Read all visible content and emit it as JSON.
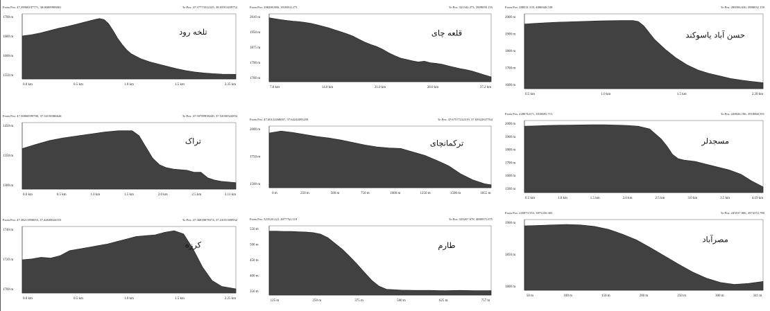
{
  "chart_data": [
    {
      "type": "area",
      "title": "تلخه رود",
      "header_left": "From Pos: 47.39968197771, 38.06809909001",
      "header_right": "To Pos: 47.37773312225, 38.05913209752",
      "yticks": [
        "1790 m",
        "1680 m",
        "1600 m",
        "1550 m"
      ],
      "xticks": [
        "0.0 km",
        "0.5 km",
        "1.0 km",
        "1.5 km",
        "2.35 km"
      ],
      "x": [
        0,
        0.1,
        0.2,
        0.3,
        0.4,
        0.5,
        0.6,
        0.7,
        0.8,
        0.85,
        0.9,
        0.95,
        1.0,
        1.05,
        1.1,
        1.15,
        1.2,
        1.3,
        1.4,
        1.5,
        1.6,
        1.7,
        1.8,
        1.9,
        2.0,
        2.1,
        2.2,
        2.35
      ],
      "y": [
        1715,
        1720,
        1728,
        1738,
        1748,
        1756,
        1766,
        1776,
        1786,
        1790,
        1786,
        1768,
        1738,
        1705,
        1678,
        1655,
        1638,
        1618,
        1604,
        1594,
        1584,
        1574,
        1566,
        1560,
        1556,
        1553,
        1551,
        1550
      ],
      "xlim": [
        0,
        2.35
      ],
      "ylim": [
        1530,
        1810
      ]
    },
    {
      "type": "area",
      "title": "قلعه چای",
      "header_left": "From Pos: 298280.986, 3918814.273",
      "header_right": "To Pos: 321342.273, 3909059.135",
      "yticks": [
        "2010 m",
        "1950 m",
        "1875 m",
        "1790 m",
        "1700 m"
      ],
      "xticks": [
        "7.0 km",
        "14.0 km",
        "21.0 km",
        "28.0 km",
        "37.2 km"
      ],
      "x": [
        0,
        1,
        2,
        3,
        4,
        5,
        6,
        7,
        8,
        9,
        10,
        11,
        12,
        13,
        14,
        15,
        16,
        17,
        18,
        19,
        20,
        21,
        22,
        23,
        24,
        25,
        26,
        27,
        28,
        29,
        30,
        31,
        32,
        33,
        34,
        35,
        36,
        37.2
      ],
      "y": [
        2010,
        2005,
        2000,
        1996,
        1992,
        1990,
        1986,
        1981,
        1974,
        1966,
        1958,
        1948,
        1938,
        1928,
        1916,
        1900,
        1885,
        1872,
        1862,
        1848,
        1830,
        1815,
        1802,
        1795,
        1788,
        1782,
        1786,
        1778,
        1775,
        1770,
        1762,
        1755,
        1748,
        1742,
        1735,
        1726,
        1716,
        1705
      ],
      "xlim": [
        0,
        37.2
      ],
      "ylim": [
        1680,
        2030
      ]
    },
    {
      "type": "area",
      "title": "حسن آباد یاسوکند",
      "header_left": "From Pos: 288531.535, 4006948.538",
      "header_right": "To Pos: 288394.630, 3988032.150",
      "yticks": [
        "2000 m",
        "1900 m",
        "1800 m",
        "1700 m",
        "1600 m"
      ],
      "xticks": [
        "0.5 km",
        "1.0 km",
        "1.5 km",
        "2.20 km"
      ],
      "x": [
        0,
        0.1,
        0.2,
        0.3,
        0.4,
        0.5,
        0.6,
        0.7,
        0.8,
        0.9,
        1.0,
        1.05,
        1.1,
        1.15,
        1.2,
        1.3,
        1.4,
        1.5,
        1.6,
        1.7,
        1.8,
        1.9,
        2.0,
        2.1,
        2.2
      ],
      "y": [
        1960,
        1964,
        1968,
        1971,
        1973,
        1975,
        1977,
        1979,
        1980,
        1981,
        1981,
        1975,
        1950,
        1910,
        1870,
        1810,
        1760,
        1720,
        1690,
        1670,
        1655,
        1640,
        1630,
        1622,
        1615
      ],
      "xlim": [
        0,
        2.2
      ],
      "ylim": [
        1580,
        2020
      ]
    },
    {
      "type": "area",
      "title": "تراک",
      "header_left": "From Pos: 47.50860599700, 37.54158386626",
      "header_right": "To Pos: 47.50789958240, 37.52030324594",
      "yticks": [
        "1450 m",
        "1350 m",
        "1300 m"
      ],
      "xticks": [
        "0.0 km",
        "0.5 km",
        "1.0 km",
        "1.5 km",
        "2.0 km",
        "2.5 km",
        "3.11 km"
      ],
      "x": [
        0,
        0.2,
        0.4,
        0.6,
        0.8,
        1.0,
        1.2,
        1.4,
        1.6,
        1.7,
        1.8,
        1.9,
        2.0,
        2.1,
        2.2,
        2.3,
        2.4,
        2.5,
        2.6,
        2.7,
        2.8,
        2.9,
        3.0,
        3.11
      ],
      "y": [
        1385,
        1398,
        1410,
        1418,
        1424,
        1430,
        1436,
        1440,
        1440,
        1425,
        1390,
        1355,
        1335,
        1326,
        1322,
        1320,
        1318,
        1312,
        1312,
        1295,
        1288,
        1284,
        1282,
        1280
      ],
      "xlim": [
        0,
        3.11
      ],
      "ylim": [
        1260,
        1465
      ]
    },
    {
      "type": "area",
      "title": "ترکمانچای",
      "header_left": "From Pos: 47.60122468007, 37.64244093258",
      "header_right": "To Pos: 47.67577222319, 37.65022637764",
      "yticks": [
        "2000 m",
        "1750 m",
        "1500 m"
      ],
      "xticks": [
        "0 m",
        "250 m",
        "500 m",
        "750 m",
        "1000 m",
        "1250 m",
        "1500 m",
        "1855 m"
      ],
      "x": [
        0,
        100,
        200,
        300,
        400,
        500,
        600,
        700,
        800,
        900,
        1000,
        1100,
        1200,
        1300,
        1400,
        1500,
        1600,
        1700,
        1800,
        1855
      ],
      "y": [
        2010,
        2030,
        2015,
        1995,
        1975,
        1960,
        1940,
        1915,
        1890,
        1870,
        1860,
        1855,
        1820,
        1785,
        1735,
        1680,
        1600,
        1540,
        1500,
        1490
      ],
      "xlim": [
        0,
        1855
      ],
      "ylim": [
        1460,
        2080
      ]
    },
    {
      "type": "area",
      "title": "مسجدلر",
      "header_left": "From Pos: 228076.671, 3918695.713",
      "header_right": "To Pos: 228026.196, 3918060.591",
      "yticks": [
        "2000 m",
        "1900 m",
        "1800 m",
        "1700 m",
        "1600 m",
        "1500 m"
      ],
      "xticks": [
        "0.5 km",
        "1.0 km",
        "1.5 km",
        "2.0 km",
        "2.5 km",
        "3.0 km",
        "3.5 km",
        "4.19 km"
      ],
      "x": [
        0,
        0.2,
        0.4,
        0.6,
        0.8,
        1.0,
        1.2,
        1.4,
        1.6,
        1.8,
        2.0,
        2.2,
        2.4,
        2.5,
        2.6,
        2.7,
        2.8,
        3.0,
        3.2,
        3.4,
        3.6,
        3.8,
        4.0,
        4.19
      ],
      "y": [
        1990,
        1992,
        1995,
        1997,
        1998,
        1999,
        2000,
        2000,
        1998,
        1995,
        1990,
        1970,
        1900,
        1850,
        1790,
        1760,
        1750,
        1740,
        1720,
        1700,
        1680,
        1650,
        1600,
        1560
      ],
      "xlim": [
        0,
        4.19
      ],
      "ylim": [
        1520,
        2030
      ]
    },
    {
      "type": "area",
      "title": "کرزه",
      "header_left": "From Pos: 47.38211890055, 37.42638024553",
      "header_right": "To Pos: 47.36839878374, 37.41031380932",
      "yticks": [
        "1740 m",
        "1720 m",
        "1700 m"
      ],
      "xticks": [
        "0.0 km",
        "0.5 km",
        "1.0 km",
        "1.5 km",
        "2.25 km"
      ],
      "x": [
        0,
        0.1,
        0.2,
        0.3,
        0.4,
        0.5,
        0.6,
        0.7,
        0.8,
        0.9,
        1.0,
        1.1,
        1.2,
        1.3,
        1.4,
        1.5,
        1.6,
        1.7,
        1.8,
        1.9,
        2.0,
        2.1,
        2.25
      ],
      "y": [
        1725,
        1726,
        1728,
        1727,
        1730,
        1736,
        1738,
        1740,
        1742,
        1744,
        1747,
        1750,
        1753,
        1754,
        1755,
        1758,
        1760,
        1756,
        1738,
        1716,
        1700,
        1693,
        1690
      ],
      "xlim": [
        0,
        2.25
      ],
      "ylim": [
        1685,
        1765
      ]
    },
    {
      "type": "area",
      "title": "طارم",
      "header_left": "From Pos: 323520.222, 4077762.118",
      "header_right": "To Pos: 329207.678, 4080975.075",
      "yticks": [
        "550 m",
        "500 m",
        "450 m",
        "400 m",
        "350 m"
      ],
      "xticks": [
        "125 m",
        "250 m",
        "375 m",
        "500 m",
        "625 m",
        "757 m"
      ],
      "x": [
        0,
        25,
        50,
        75,
        100,
        125,
        150,
        175,
        200,
        225,
        250,
        275,
        300,
        325,
        350,
        375,
        400,
        450,
        500,
        550,
        600,
        650,
        700,
        757
      ],
      "y": [
        552,
        552,
        551,
        551,
        550,
        549,
        547,
        542,
        530,
        510,
        490,
        466,
        440,
        412,
        385,
        365,
        355,
        352,
        351,
        351,
        350,
        351,
        350,
        350
      ],
      "xlim": [
        0,
        757
      ],
      "ylim": [
        335,
        570
      ]
    },
    {
      "type": "area",
      "title": "مصرآباد",
      "header_left": "From Pos: 245873.553, 3971256.303",
      "header_right": "To Pos: 243537.006, 3974372.789",
      "yticks": [
        "1900 m",
        "1850 m",
        "1800 m"
      ],
      "xticks": [
        "50 m",
        "100 m",
        "150 m",
        "200 m",
        "250 m",
        "300 m",
        "341 m"
      ],
      "x": [
        0,
        20,
        40,
        60,
        80,
        100,
        120,
        140,
        160,
        180,
        200,
        220,
        240,
        260,
        280,
        300,
        320,
        341
      ],
      "y": [
        1905,
        1906,
        1907,
        1908,
        1907,
        1904,
        1898,
        1888,
        1876,
        1860,
        1843,
        1826,
        1810,
        1797,
        1788,
        1784,
        1786,
        1790
      ],
      "xlim": [
        0,
        341
      ],
      "ylim": [
        1772,
        1918
      ]
    }
  ]
}
